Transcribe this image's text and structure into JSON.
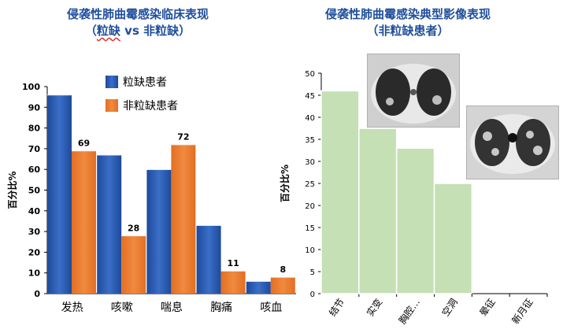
{
  "left_panel": {
    "title_line1": "侵袭性肺曲霉感染临床表现",
    "title_line2_prefix": "（",
    "title_line2_underlined": "粒缺",
    "title_line2_suffix": " vs 非粒缺）"
  },
  "right_panel": {
    "title_line1": "侵袭性肺曲霉感染典型影像表现",
    "title_line2": "（非粒缺患者）"
  },
  "colors": {
    "neutropenic": "#2f5fb3",
    "non_neutropenic": "#ed7d31",
    "imaging_bar": "#c5e0b4",
    "title": "#1f4e9c"
  },
  "chart_data": [
    {
      "type": "bar",
      "title": "",
      "ylabel": "百分比%",
      "xlabel": "",
      "ylim": [
        0,
        100
      ],
      "yticks": [
        0,
        10,
        20,
        30,
        40,
        50,
        60,
        70,
        80,
        90,
        100
      ],
      "categories": [
        "发热",
        "咳嗽",
        "喘息",
        "胸痛",
        "咳血"
      ],
      "series": [
        {
          "name": "粒缺患者",
          "values": [
            96,
            67,
            60,
            33,
            6
          ],
          "data_labels": [
            "",
            "",
            "",
            "",
            ""
          ]
        },
        {
          "name": "非粒缺患者",
          "values": [
            69,
            28,
            72,
            11,
            8
          ],
          "data_labels": [
            "69",
            "28",
            "72",
            "11",
            "8"
          ]
        }
      ],
      "legend_position": "top-right",
      "grid": false
    },
    {
      "type": "bar",
      "title": "",
      "ylabel": "百分比%",
      "xlabel": "",
      "ylim": [
        0,
        50
      ],
      "yticks": [
        0,
        5,
        10,
        15,
        20,
        25,
        30,
        35,
        40,
        45,
        50
      ],
      "categories": [
        "结节",
        "实变",
        "胸腔…",
        "空洞",
        "晕征",
        "新月征"
      ],
      "series": [
        {
          "values": [
            46,
            37.5,
            33,
            25,
            0,
            0
          ]
        }
      ],
      "grid": false
    }
  ]
}
